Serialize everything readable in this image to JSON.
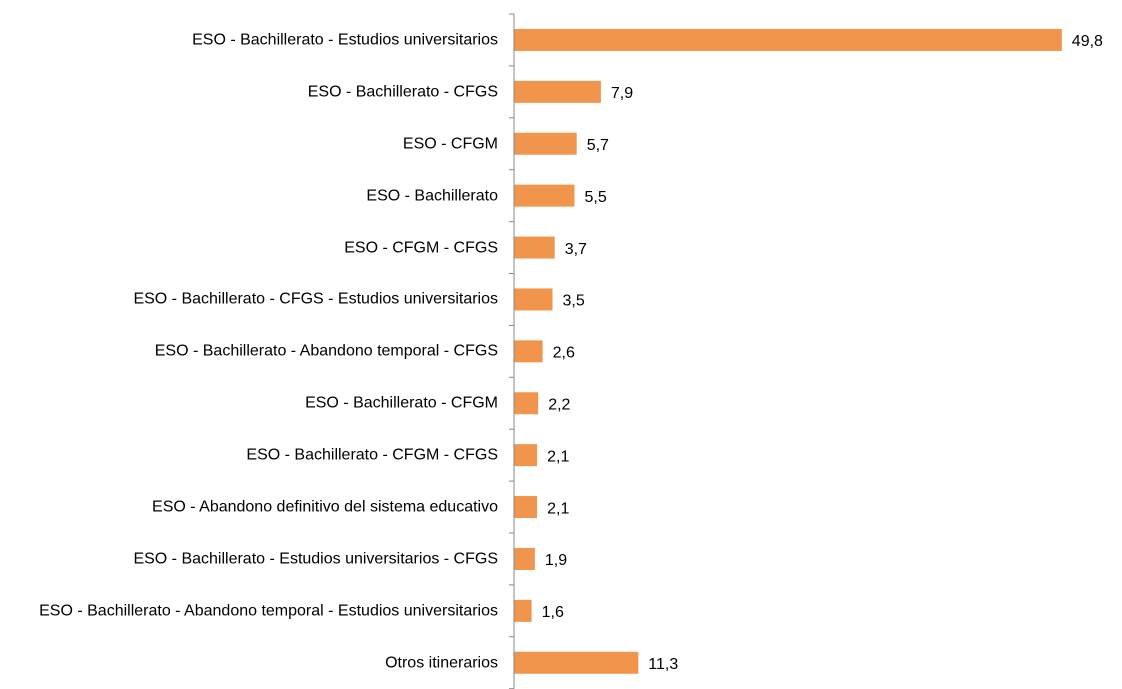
{
  "chart_data": {
    "type": "barh",
    "categories": [
      "ESO - Bachillerato - Estudios universitarios",
      "ESO - Bachillerato - CFGS",
      "ESO - CFGM",
      "ESO - Bachillerato",
      "ESO - CFGM - CFGS",
      "ESO - Bachillerato - CFGS - Estudios universitarios",
      "ESO - Bachillerato - Abandono temporal - CFGS",
      "ESO - Bachillerato - CFGM",
      "ESO - Bachillerato - CFGM - CFGS",
      "ESO - Abandono definitivo del sistema educativo",
      "ESO - Bachillerato - Estudios universitarios - CFGS",
      "ESO - Bachillerato - Abandono temporal - Estudios universitarios",
      "Otros itinerarios"
    ],
    "values": [
      49.8,
      7.9,
      5.7,
      5.5,
      3.7,
      3.5,
      2.6,
      2.2,
      2.1,
      2.1,
      1.9,
      1.6,
      11.3
    ],
    "value_labels": [
      "49,8",
      "7,9",
      "5,7",
      "5,5",
      "3,7",
      "3,5",
      "2,6",
      "2,2",
      "2,1",
      "2,1",
      "1,9",
      "1,6",
      "11,3"
    ],
    "color": "#f0954b",
    "xlim": [
      0,
      50
    ]
  }
}
